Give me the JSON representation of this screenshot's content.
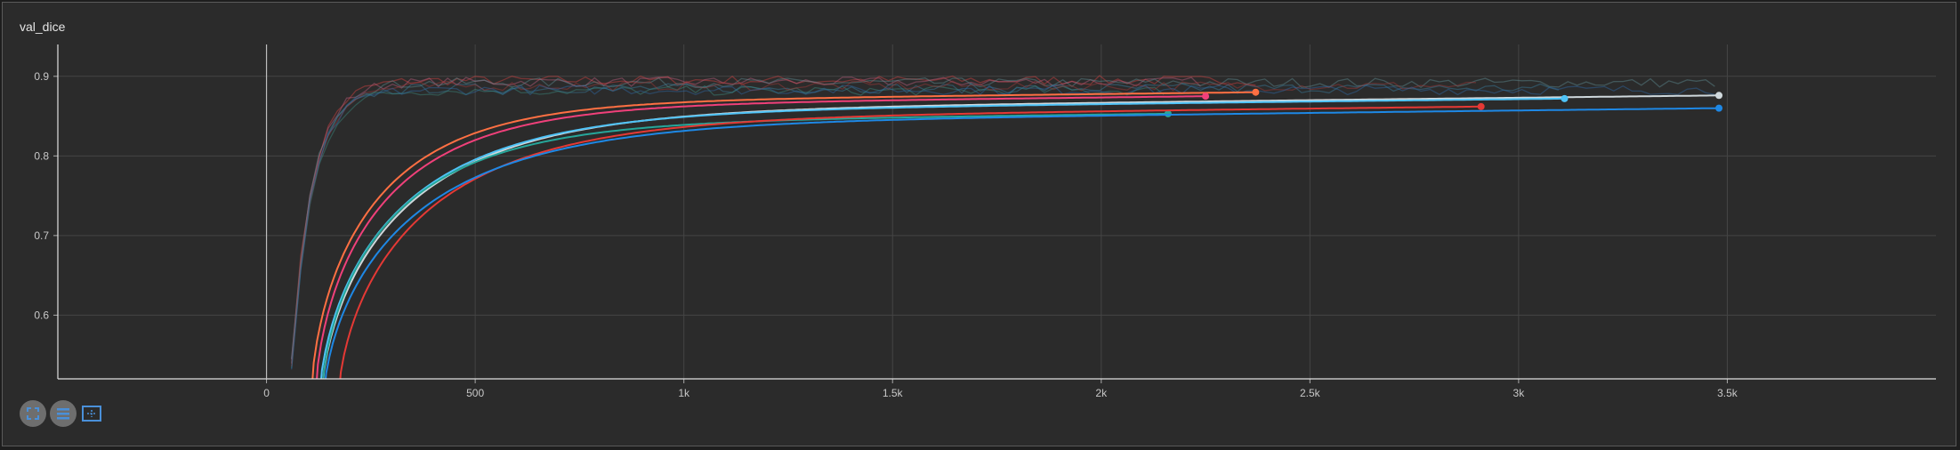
{
  "card": {
    "title": "val_dice"
  },
  "toolbar": {
    "buttons": [
      {
        "name": "fullscreen-icon"
      },
      {
        "name": "toggle-log-scale-icon"
      },
      {
        "name": "fit-domain-icon"
      }
    ]
  },
  "colors": {
    "grid": "#454545",
    "axis": "#e0e0e0",
    "background": "#2b2b2b"
  },
  "chart_data": {
    "type": "line",
    "title": "val_dice",
    "xlabel": "",
    "ylabel": "",
    "xlim": [
      -500,
      4000
    ],
    "ylim": [
      0.52,
      0.94
    ],
    "x_ticks": [
      0,
      500,
      1000,
      1500,
      2000,
      2500,
      3000,
      3500
    ],
    "x_tick_labels": [
      "0",
      "500",
      "1k",
      "1.5k",
      "2k",
      "2.5k",
      "3k",
      "3.5k"
    ],
    "y_ticks": [
      0.6,
      0.7,
      0.8,
      0.9
    ],
    "y_tick_labels": [
      "0.6",
      "0.7",
      "0.8",
      "0.9"
    ],
    "grid": true,
    "series": [
      {
        "color": "#ff7043",
        "end_x": 2370,
        "end_y": 0.88,
        "start_x": 105,
        "curve_k": 230
      },
      {
        "color": "#f0407a",
        "end_x": 2250,
        "end_y": 0.875,
        "start_x": 115,
        "curve_k": 240
      },
      {
        "color": "#cfd8dc",
        "end_x": 3480,
        "end_y": 0.876,
        "start_x": 130,
        "curve_k": 300
      },
      {
        "color": "#4fc3f7",
        "end_x": 3110,
        "end_y": 0.872,
        "start_x": 125,
        "curve_k": 290
      },
      {
        "color": "#26a69a",
        "end_x": 2160,
        "end_y": 0.853,
        "start_x": 130,
        "curve_k": 260
      },
      {
        "color": "#e53935",
        "end_x": 2910,
        "end_y": 0.862,
        "start_x": 170,
        "curve_k": 310
      },
      {
        "color": "#1e88e5",
        "end_x": 3480,
        "end_y": 0.86,
        "start_x": 135,
        "curve_k": 320
      }
    ],
    "raw_series": [
      {
        "color": "#d84343",
        "end_x": 2380,
        "y_plateau": 0.895
      },
      {
        "color": "#c06080",
        "end_x": 2250,
        "y_plateau": 0.893
      },
      {
        "color": "#5f8f95",
        "end_x": 3480,
        "y_plateau": 0.892
      },
      {
        "color": "#3a7fa0",
        "end_x": 3110,
        "y_plateau": 0.885
      },
      {
        "color": "#3b8b80",
        "end_x": 2160,
        "y_plateau": 0.882
      },
      {
        "color": "#a33a3a",
        "end_x": 2910,
        "y_plateau": 0.888
      },
      {
        "color": "#2f6aa8",
        "end_x": 3480,
        "y_plateau": 0.883
      }
    ]
  }
}
